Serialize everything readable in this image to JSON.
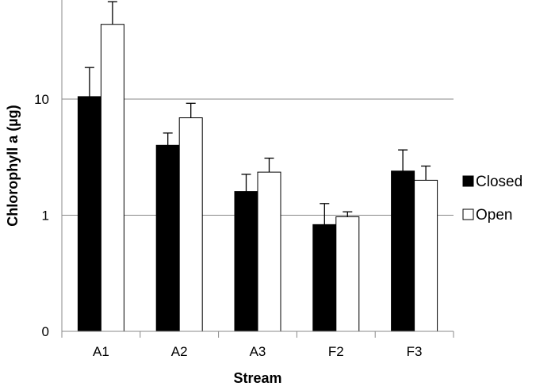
{
  "chart_data": {
    "type": "bar",
    "title": "",
    "xlabel": "Stream",
    "ylabel": "Chlorophyll a (µg)",
    "yscale": "log",
    "ylim": [
      0.1,
      100
    ],
    "yticks": [
      {
        "value": 0.1,
        "label": "0"
      },
      {
        "value": 1,
        "label": "1"
      },
      {
        "value": 10,
        "label": "10"
      }
    ],
    "grid": "horizontal",
    "legend_position": "right",
    "categories": [
      "A1",
      "A2",
      "A3",
      "F2",
      "F3"
    ],
    "series": [
      {
        "name": "Closed",
        "color": "#000000",
        "values": [
          10.5,
          4.0,
          1.6,
          0.83,
          2.4
        ],
        "errors": [
          8.2,
          1.1,
          0.65,
          0.43,
          1.25
        ]
      },
      {
        "name": "Open",
        "color": "#ffffff",
        "values": [
          44,
          6.9,
          2.35,
          0.97,
          2.0
        ],
        "errors": [
          25,
          2.3,
          0.75,
          0.1,
          0.65
        ]
      }
    ]
  }
}
